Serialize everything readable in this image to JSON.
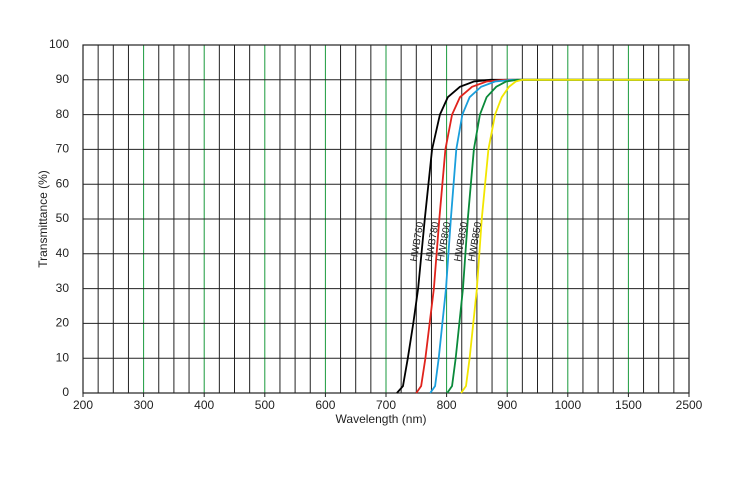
{
  "chart_data": {
    "type": "line",
    "xlabel": "Wavelength (nm)",
    "ylabel": "Transmittance (%)",
    "xlim": [
      200,
      2500
    ],
    "xticks": [
      200,
      300,
      400,
      500,
      600,
      700,
      800,
      900,
      1000,
      1500,
      2500
    ],
    "ylim": [
      0,
      100
    ],
    "yticks": [
      0,
      10,
      20,
      30,
      40,
      50,
      60,
      70,
      80,
      90,
      100
    ],
    "grid": true,
    "series": [
      {
        "name": "HWB760",
        "color": "#000000",
        "x": [
          718,
          728,
          736,
          745,
          753,
          764,
          776,
          789,
          802,
          822,
          845,
          872,
          1000,
          2500
        ],
        "values": [
          0,
          2,
          10,
          20,
          30,
          50,
          70,
          80,
          85,
          88,
          89.5,
          90,
          90,
          90
        ]
      },
      {
        "name": "HWB780",
        "color": "#e0231c",
        "x": [
          750,
          758,
          765,
          772,
          779,
          788,
          798,
          809,
          822,
          842,
          866,
          896,
          1000,
          2500
        ],
        "values": [
          0,
          2,
          10,
          20,
          30,
          50,
          70,
          80,
          85,
          88,
          89.5,
          90,
          90,
          90
        ]
      },
      {
        "name": "HWB800",
        "color": "#1a9fdc",
        "x": [
          773,
          781,
          787,
          793,
          799,
          807,
          816,
          826,
          838,
          857,
          880,
          908,
          1000,
          2500
        ],
        "values": [
          0,
          2,
          10,
          20,
          30,
          50,
          70,
          80,
          85,
          88,
          89.5,
          90,
          90,
          90
        ]
      },
      {
        "name": "HWB830",
        "color": "#0a8a3a",
        "x": [
          801,
          809,
          815,
          821,
          827,
          835,
          845,
          855,
          866,
          882,
          898,
          916,
          1000,
          2500
        ],
        "values": [
          0,
          2,
          10,
          20,
          30,
          50,
          70,
          80,
          85,
          88,
          89.5,
          90,
          90,
          90
        ]
      },
      {
        "name": "HWB850",
        "color": "#f2e600",
        "x": [
          824,
          832,
          838,
          844,
          850,
          858,
          869,
          880,
          891,
          903,
          914,
          925,
          1000,
          2500
        ],
        "values": [
          0,
          2,
          10,
          20,
          30,
          50,
          70,
          80,
          85,
          88,
          89.5,
          90,
          90,
          90
        ]
      }
    ]
  }
}
